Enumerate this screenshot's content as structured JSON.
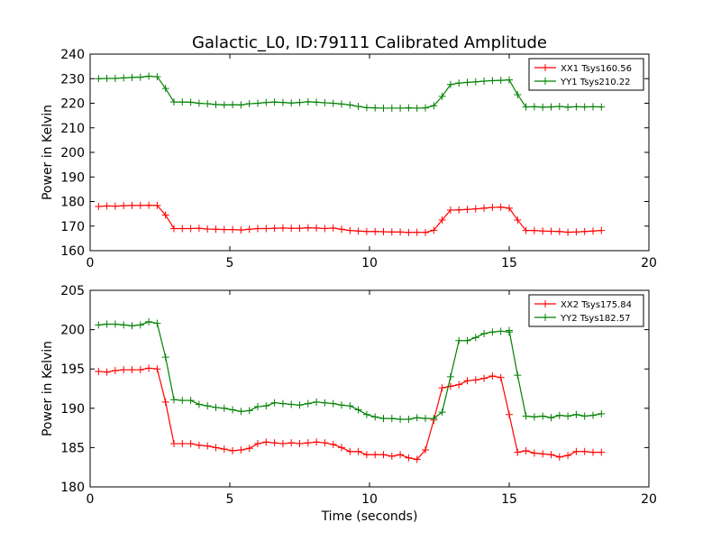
{
  "figure": {
    "title": "Galactic_L0, ID:79111 Calibrated Amplitude"
  },
  "chart_data": [
    {
      "type": "line",
      "title": "Galactic_L0, ID:79111 Calibrated Amplitude",
      "xlabel": "",
      "ylabel": "Power in Kelvin",
      "xlim": [
        0,
        20
      ],
      "ylim": [
        160,
        240
      ],
      "xticks": [
        "0",
        "5",
        "10",
        "15",
        "20"
      ],
      "yticks": [
        "160",
        "170",
        "180",
        "190",
        "200",
        "210",
        "220",
        "230",
        "240"
      ],
      "grid": false,
      "legend_position": "top-right",
      "x": [
        0.3,
        0.6,
        0.9,
        1.2,
        1.5,
        1.8,
        2.1,
        2.4,
        2.7,
        3.0,
        3.3,
        3.6,
        3.9,
        4.2,
        4.5,
        4.8,
        5.1,
        5.4,
        5.7,
        6.0,
        6.3,
        6.6,
        6.9,
        7.2,
        7.5,
        7.8,
        8.1,
        8.4,
        8.7,
        9.0,
        9.3,
        9.6,
        9.9,
        10.2,
        10.5,
        10.8,
        11.1,
        11.4,
        11.7,
        12.0,
        12.3,
        12.6,
        12.9,
        13.2,
        13.5,
        13.8,
        14.1,
        14.4,
        14.7,
        15.0,
        15.3,
        15.6,
        15.9,
        16.2,
        16.5,
        16.8,
        17.1,
        17.4,
        17.7,
        18.0,
        18.3
      ],
      "series": [
        {
          "name": "XX1 Tsys160.56",
          "color": "#ff0000",
          "values": [
            178.0,
            178.2,
            178.1,
            178.3,
            178.4,
            178.4,
            178.5,
            178.4,
            174.5,
            169.0,
            169.0,
            169.0,
            169.1,
            168.8,
            168.7,
            168.6,
            168.6,
            168.4,
            168.7,
            169.0,
            169.0,
            169.1,
            169.2,
            169.1,
            169.1,
            169.3,
            169.2,
            169.0,
            169.2,
            168.7,
            168.2,
            168.0,
            167.8,
            167.8,
            167.7,
            167.6,
            167.6,
            167.4,
            167.5,
            167.4,
            168.3,
            172.5,
            176.5,
            176.6,
            176.8,
            177.0,
            177.3,
            177.6,
            177.7,
            177.3,
            172.5,
            168.2,
            168.2,
            168.0,
            167.9,
            167.8,
            167.5,
            167.6,
            167.8,
            168.0,
            168.2
          ]
        },
        {
          "name": "YY1 Tsys210.22",
          "color": "#008000",
          "values": [
            230.0,
            230.1,
            230.1,
            230.3,
            230.5,
            230.6,
            231.0,
            230.8,
            226.0,
            220.5,
            220.5,
            220.4,
            220.0,
            219.8,
            219.5,
            219.3,
            219.4,
            219.3,
            219.8,
            220.0,
            220.3,
            220.5,
            220.3,
            220.1,
            220.3,
            220.6,
            220.4,
            220.2,
            220.0,
            219.7,
            219.3,
            218.7,
            218.2,
            218.1,
            218.0,
            218.0,
            218.0,
            218.1,
            218.0,
            218.1,
            219.0,
            222.8,
            227.6,
            228.2,
            228.5,
            228.7,
            229.0,
            229.2,
            229.3,
            229.5,
            223.5,
            218.5,
            218.6,
            218.4,
            218.5,
            218.7,
            218.4,
            218.6,
            218.5,
            218.6,
            218.5
          ]
        }
      ]
    },
    {
      "type": "line",
      "title": "",
      "xlabel": "Time (seconds)",
      "ylabel": "Power in Kelvin",
      "xlim": [
        0,
        20
      ],
      "ylim": [
        180,
        205
      ],
      "xticks": [
        "0",
        "5",
        "10",
        "15",
        "20"
      ],
      "yticks": [
        "180",
        "185",
        "190",
        "195",
        "200",
        "205"
      ],
      "grid": false,
      "legend_position": "top-right",
      "x": [
        0.3,
        0.6,
        0.9,
        1.2,
        1.5,
        1.8,
        2.1,
        2.4,
        2.7,
        3.0,
        3.3,
        3.6,
        3.9,
        4.2,
        4.5,
        4.8,
        5.1,
        5.4,
        5.7,
        6.0,
        6.3,
        6.6,
        6.9,
        7.2,
        7.5,
        7.8,
        8.1,
        8.4,
        8.7,
        9.0,
        9.3,
        9.6,
        9.9,
        10.2,
        10.5,
        10.8,
        11.1,
        11.4,
        11.7,
        12.0,
        12.3,
        12.6,
        12.9,
        13.2,
        13.5,
        13.8,
        14.1,
        14.4,
        14.7,
        15.0,
        15.3,
        15.6,
        15.9,
        16.2,
        16.5,
        16.8,
        17.1,
        17.4,
        17.7,
        18.0,
        18.3
      ],
      "series": [
        {
          "name": "XX2 Tsys175.84",
          "color": "#ff0000",
          "values": [
            194.7,
            194.6,
            194.8,
            194.9,
            194.9,
            194.9,
            195.1,
            195.0,
            190.8,
            185.5,
            185.5,
            185.5,
            185.3,
            185.2,
            185.0,
            184.8,
            184.6,
            184.7,
            184.9,
            185.5,
            185.7,
            185.6,
            185.5,
            185.6,
            185.5,
            185.6,
            185.7,
            185.6,
            185.4,
            185.0,
            184.5,
            184.5,
            184.1,
            184.1,
            184.1,
            183.9,
            184.1,
            183.7,
            183.5,
            184.7,
            188.5,
            192.6,
            192.8,
            193.0,
            193.5,
            193.6,
            193.8,
            194.1,
            193.9,
            189.2,
            184.4,
            184.6,
            184.3,
            184.2,
            184.1,
            183.8,
            184.0,
            184.5,
            184.5,
            184.4,
            184.4
          ],
          "x": [
            0.3,
            0.6,
            0.9,
            1.2,
            1.5,
            1.8,
            2.1,
            2.4,
            2.7,
            3.0,
            3.3,
            3.6,
            3.9,
            4.2,
            4.5,
            4.8,
            5.1,
            5.4,
            5.7,
            6.0,
            6.3,
            6.6,
            6.9,
            7.2,
            7.5,
            7.8,
            8.1,
            8.4,
            8.7,
            9.0,
            9.3,
            9.6,
            9.9,
            10.2,
            10.5,
            10.8,
            11.1,
            11.4,
            11.7,
            12.0,
            12.3,
            12.6,
            12.9,
            13.2,
            13.5,
            13.8,
            14.1,
            14.4,
            14.7,
            15.0,
            15.3,
            15.6,
            15.9,
            16.2,
            16.5,
            16.8,
            17.1,
            17.4,
            17.7,
            18.0,
            18.3
          ]
        },
        {
          "name": "YY2 Tsys182.57",
          "color": "#008000",
          "values": [
            200.6,
            200.7,
            200.7,
            200.6,
            200.5,
            200.6,
            201.0,
            200.8,
            196.5,
            191.1,
            191.0,
            191.0,
            190.5,
            190.3,
            190.1,
            190.0,
            189.8,
            189.6,
            189.7,
            190.2,
            190.3,
            190.7,
            190.6,
            190.5,
            190.4,
            190.6,
            190.8,
            190.7,
            190.6,
            190.4,
            190.3,
            189.8,
            189.2,
            188.9,
            188.7,
            188.7,
            188.6,
            188.6,
            188.8,
            188.7,
            188.7,
            189.5,
            194.0,
            198.6,
            198.6,
            199.0,
            199.5,
            199.7,
            199.8,
            199.7,
            199.9,
            194.2,
            189.0,
            188.9,
            189.0,
            188.8,
            189.1,
            189.0,
            189.2,
            189.0,
            189.1,
            189.3
          ],
          "x": [
            0.3,
            0.6,
            0.9,
            1.2,
            1.5,
            1.8,
            2.1,
            2.4,
            2.7,
            3.0,
            3.3,
            3.6,
            3.9,
            4.2,
            4.5,
            4.8,
            5.1,
            5.4,
            5.7,
            6.0,
            6.3,
            6.6,
            6.9,
            7.2,
            7.5,
            7.8,
            8.1,
            8.4,
            8.7,
            9.0,
            9.3,
            9.6,
            9.9,
            10.2,
            10.5,
            10.8,
            11.1,
            11.4,
            11.7,
            12.0,
            12.3,
            12.6,
            12.9,
            13.2,
            13.5,
            13.8,
            14.1,
            14.4,
            14.7,
            15.0,
            15.0,
            15.3,
            15.6,
            15.9,
            16.2,
            16.5,
            16.8,
            17.1,
            17.4,
            17.7,
            18.0,
            18.3
          ]
        }
      ]
    }
  ]
}
